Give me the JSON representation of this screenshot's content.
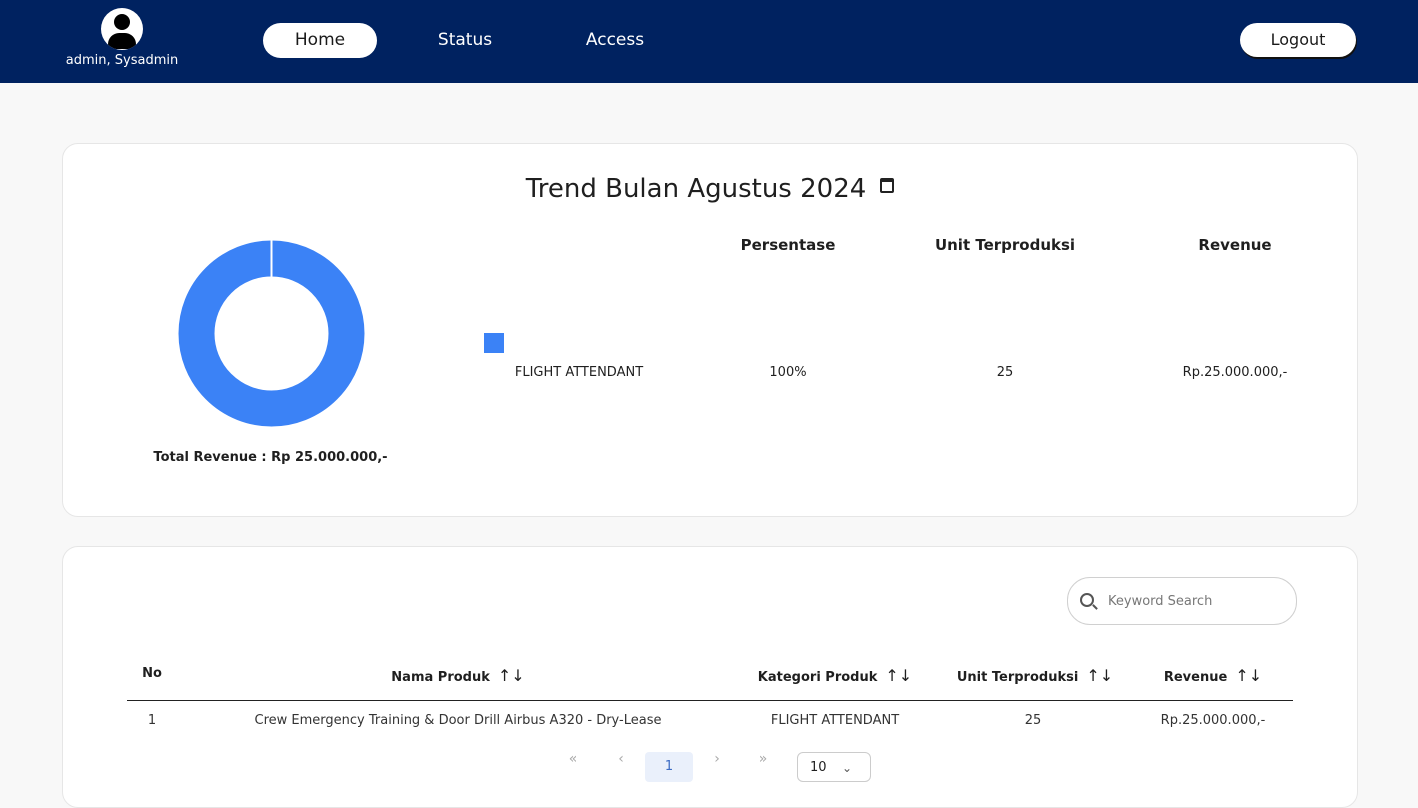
{
  "user": {
    "name": "admin, Sysadmin",
    "avatar_icon": "user-avatar-icon"
  },
  "nav": {
    "home": "Home",
    "status": "Status",
    "access": "Access",
    "logout": "Logout",
    "active": "home"
  },
  "colors": {
    "navbar": "#002260",
    "donut": "#3b82f6",
    "background": "#f8f8f8"
  },
  "trend": {
    "title": "Trend Bulan Agustus 2024",
    "title_icon": "calendar-icon",
    "headers": {
      "persentase": "Persentase",
      "unit": "Unit Terproduksi",
      "revenue": "Revenue"
    },
    "rows": [
      {
        "kategori": "FLIGHT ATTENDANT",
        "persentase": "100%",
        "unit": "25",
        "revenue": "Rp.25.000.000,-",
        "color": "#3b82f6"
      }
    ],
    "total_revenue": "Total Revenue : Rp 25.000.000,-"
  },
  "chart_data": {
    "type": "pie",
    "categories": [
      "FLIGHT ATTENDANT"
    ],
    "values": [
      100
    ],
    "colors": [
      "#3b82f6"
    ]
  },
  "table": {
    "search_placeholder": "Keyword Search",
    "search_icon": "search-icon",
    "columns": {
      "no": "No",
      "nama": "Nama Produk",
      "kategori": "Kategori Produk",
      "unit": "Unit Terproduksi",
      "revenue": "Revenue"
    },
    "sort_icon": "↑↓",
    "rows": [
      {
        "no": "1",
        "nama": "Crew Emergency Training & Door Drill Airbus A320 - Dry-Lease",
        "kategori": "FLIGHT ATTENDANT",
        "unit": "25",
        "revenue": "Rp.25.000.000,-"
      }
    ]
  },
  "pagination": {
    "first": "«",
    "prev": "‹",
    "page": "1",
    "next": "›",
    "last": "»",
    "page_size": "10"
  }
}
